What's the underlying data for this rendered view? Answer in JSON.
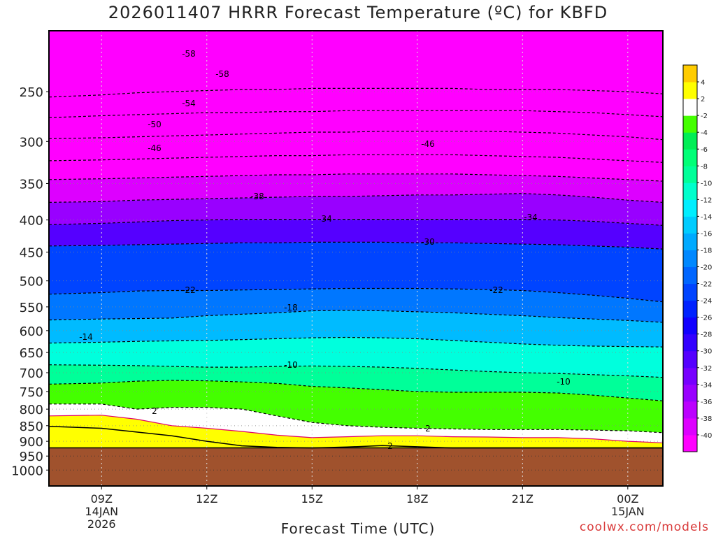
{
  "chart_data": {
    "type": "heatmap",
    "title": "2026011407 HRRR Forecast Temperature (ºC) for KBFD",
    "xlabel": "Forecast Time (UTC)",
    "ylabel": "",
    "credit": "coolwx.com/models",
    "x_ticks": [
      {
        "hour": 9,
        "lines": [
          "09Z",
          "14JAN",
          "2026"
        ]
      },
      {
        "hour": 12,
        "lines": [
          "12Z"
        ]
      },
      {
        "hour": 15,
        "lines": [
          "15Z"
        ]
      },
      {
        "hour": 18,
        "lines": [
          "18Z"
        ]
      },
      {
        "hour": 21,
        "lines": [
          "21Z"
        ]
      },
      {
        "hour": 24,
        "lines": [
          "00Z",
          "15JAN"
        ]
      }
    ],
    "xlim": [
      7.5,
      25
    ],
    "y_axis": {
      "scale": "log-pressure",
      "unit": "hPa",
      "inverted": true,
      "range": [
        1060,
        200
      ]
    },
    "y_ticks": [
      250,
      300,
      350,
      400,
      450,
      500,
      550,
      600,
      650,
      700,
      750,
      800,
      850,
      900,
      950,
      1000
    ],
    "grid": true,
    "surface_pressure": 922,
    "colorbar": {
      "levels": [
        -40,
        -38,
        -36,
        -34,
        -32,
        -30,
        -28,
        -26,
        -24,
        -22,
        -20,
        -18,
        -16,
        -14,
        -12,
        -10,
        -8,
        -6,
        -4,
        -2,
        2,
        4
      ],
      "tick_labels": [
        "-40",
        "-38",
        "-36",
        "-34",
        "-32",
        "-30",
        "-28",
        "-26",
        "-24",
        "-22",
        "-20",
        "-18",
        "-16",
        "-14",
        "-12",
        "-10",
        "-8",
        "-6",
        "-4",
        "-2",
        "2",
        "4"
      ],
      "colors": [
        "#ff00ff",
        "#dd00ff",
        "#bb00ff",
        "#9900ff",
        "#7700ff",
        "#5500ff",
        "#3300ff",
        "#1100ff",
        "#0022ff",
        "#0044ff",
        "#0066ff",
        "#0088ff",
        "#00aaff",
        "#00ccff",
        "#00eeff",
        "#00ffcc",
        "#00ff99",
        "#00ff77",
        "#00ee55",
        "#44ff00",
        "#ffffff",
        "#ffff00",
        "#ffcc00"
      ]
    },
    "contour_labels": [
      "-58",
      "-58",
      "-54",
      "-50",
      "-46",
      "-46",
      "-38",
      "-34",
      "-34",
      "-30",
      "-22",
      "-22",
      "-18",
      "-14",
      "-10",
      "-10",
      "2",
      "2",
      "2"
    ],
    "series": [
      {
        "x": [
          7.5,
          9,
          10,
          11,
          12,
          13,
          14,
          15,
          16,
          17,
          18,
          19,
          20,
          21,
          22,
          23,
          24,
          25
        ],
        "y": [
          255,
          253,
          251,
          250,
          249,
          248,
          248,
          247,
          247,
          247,
          247,
          247,
          248,
          248,
          248,
          249,
          250,
          252
        ]
      },
      {
        "x": [
          7.5,
          9,
          10,
          11,
          12,
          13,
          14,
          15,
          16,
          17,
          18,
          19,
          20,
          21,
          22,
          23,
          24,
          25
        ],
        "y": [
          275,
          273,
          272,
          271,
          270,
          270,
          269,
          269,
          268,
          268,
          268,
          268,
          268,
          268,
          269,
          270,
          272,
          274
        ]
      },
      {
        "x": [
          7.5,
          9,
          10,
          11,
          12,
          13,
          14,
          15,
          16,
          17,
          18,
          19,
          20,
          21,
          22,
          23,
          24,
          25
        ],
        "y": [
          297,
          296,
          295,
          294,
          293,
          292,
          291,
          290,
          290,
          289,
          289,
          289,
          289,
          290,
          291,
          293,
          295,
          298
        ]
      },
      {
        "x": [
          7.5,
          9,
          10,
          11,
          12,
          13,
          14,
          15,
          16,
          17,
          18,
          19,
          20,
          21,
          22,
          23,
          24,
          25
        ],
        "y": [
          322,
          321,
          320,
          319,
          318,
          317,
          316,
          316,
          315,
          315,
          315,
          315,
          316,
          317,
          318,
          320,
          322,
          324
        ]
      },
      {
        "x": [
          7.5,
          9,
          10,
          11,
          12,
          13,
          14,
          15,
          16,
          17,
          18,
          19,
          20,
          21,
          22,
          23,
          24,
          25
        ],
        "y": [
          345,
          344,
          343,
          342,
          341,
          340,
          339,
          339,
          338,
          338,
          338,
          338,
          339,
          340,
          341,
          343,
          345,
          347
        ]
      },
      {
        "x": [
          7.5,
          9,
          10,
          11,
          12,
          13,
          14,
          15,
          16,
          17,
          18,
          19,
          20,
          21,
          22,
          23,
          24,
          25
        ],
        "y": [
          375,
          374,
          372,
          371,
          370,
          369,
          368,
          367,
          367,
          366,
          365,
          365,
          364,
          363,
          365,
          368,
          372,
          375
        ]
      },
      {
        "x": [
          7.5,
          9,
          10,
          11,
          12,
          13,
          14,
          15,
          16,
          17,
          18,
          19,
          20,
          21,
          22,
          23,
          24,
          25
        ],
        "y": [
          407,
          405,
          403,
          401,
          400,
          399,
          399,
          399,
          399,
          399,
          399,
          399,
          399,
          399,
          400,
          402,
          405,
          408
        ]
      },
      {
        "x": [
          7.5,
          9,
          10,
          11,
          12,
          13,
          14,
          15,
          16,
          17,
          18,
          19,
          20,
          21,
          22,
          23,
          24,
          25
        ],
        "y": [
          440,
          439,
          438,
          437,
          436,
          435,
          435,
          434,
          434,
          434,
          435,
          435,
          436,
          437,
          438,
          440,
          442,
          445
        ]
      },
      {
        "x": [
          7.5,
          9,
          10,
          11,
          12,
          13,
          14,
          15,
          16,
          17,
          18,
          19,
          20,
          21,
          22,
          23,
          24,
          25
        ],
        "y": [
          525,
          522,
          519,
          518,
          518,
          517,
          516,
          515,
          514,
          514,
          514,
          515,
          516,
          518,
          522,
          527,
          533,
          540
        ]
      },
      {
        "x": [
          7.5,
          9,
          10,
          11,
          12,
          13,
          14,
          15,
          16,
          17,
          18,
          19,
          20,
          21,
          22,
          23,
          24,
          25
        ],
        "y": [
          577,
          575,
          574,
          573,
          568,
          565,
          562,
          558,
          557,
          558,
          560,
          562,
          565,
          568,
          572,
          575,
          578,
          582
        ]
      },
      {
        "x": [
          7.5,
          9,
          10,
          11,
          12,
          13,
          14,
          15,
          16,
          17,
          18,
          19,
          20,
          21,
          22,
          23,
          24,
          25
        ],
        "y": [
          628,
          626,
          624,
          623,
          622,
          620,
          618,
          616,
          615,
          616,
          618,
          622,
          626,
          630,
          633,
          635,
          636,
          637
        ]
      },
      {
        "x": [
          7.5,
          9,
          10,
          11,
          12,
          13,
          14,
          15,
          16,
          17,
          18,
          19,
          20,
          21,
          22,
          23,
          24,
          25
        ],
        "y": [
          680,
          681,
          682,
          684,
          686,
          686,
          684,
          683,
          684,
          686,
          689,
          693,
          697,
          700,
          702,
          705,
          708,
          712
        ]
      },
      {
        "x": [
          7.5,
          9,
          10,
          11,
          12,
          13,
          14,
          15,
          16,
          17,
          18,
          19,
          20,
          21,
          22,
          23,
          24,
          25
        ],
        "y": [
          730,
          727,
          722,
          720,
          721,
          724,
          728,
          736,
          740,
          745,
          750,
          752,
          752,
          752,
          754,
          760,
          768,
          776
        ]
      },
      {
        "x": [
          7.5,
          9,
          10,
          11,
          12,
          13,
          14,
          15,
          16,
          17,
          18,
          19,
          20,
          21,
          22,
          23,
          24,
          25
        ],
        "y": [
          785,
          785,
          800,
          795,
          795,
          800,
          820,
          840,
          850,
          855,
          858,
          860,
          862,
          862,
          862,
          864,
          866,
          872
        ]
      },
      {
        "x": [
          7.5,
          9,
          10,
          11,
          12,
          13,
          14,
          15,
          16,
          17,
          18,
          19,
          20,
          21,
          22,
          23,
          24,
          25
        ],
        "y": [
          820,
          818,
          830,
          850,
          858,
          868,
          880,
          888,
          885,
          882,
          882,
          885,
          886,
          888,
          888,
          892,
          900,
          905
        ]
      },
      {
        "x": [
          7.5,
          9,
          10,
          11,
          12,
          13,
          14,
          15,
          16,
          17,
          18,
          19,
          20,
          21,
          22,
          23,
          24,
          25
        ],
        "y": [
          852,
          858,
          870,
          882,
          900,
          915,
          920,
          922,
          919,
          914,
          918,
          922,
          922,
          922,
          922,
          922,
          922,
          922
        ]
      }
    ]
  }
}
